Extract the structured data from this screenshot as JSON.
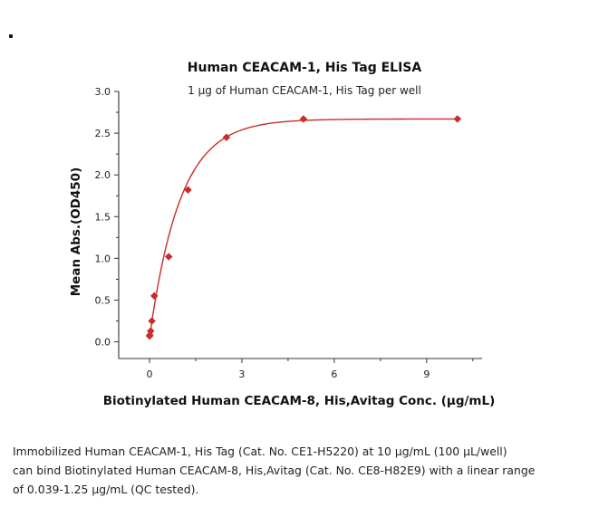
{
  "chart_data": {
    "type": "scatter",
    "title": "Human CEACAM-1, His Tag ELISA",
    "subtitle": "1 μg of Human CEACAM-1, His Tag per well",
    "xlabel": "Biotinylated Human CEACAM-8, His,Avitag Conc. (μg/mL)",
    "ylabel": "Mean Abs.(OD450)",
    "xlim": [
      -1,
      10.8
    ],
    "ylim": [
      -0.2,
      3.0
    ],
    "x_ticks": [
      "0",
      "3",
      "6",
      "9"
    ],
    "y_ticks": [
      "0.0",
      "0.5",
      "1.0",
      "1.5",
      "2.0",
      "2.5",
      "3.0"
    ],
    "grid": false,
    "color": "#cc2b2b",
    "series": [
      {
        "points": [
          {
            "x": 0.0024,
            "y": 0.07
          },
          {
            "x": 0.0098,
            "y": 0.08
          },
          {
            "x": 0.039,
            "y": 0.13
          },
          {
            "x": 0.078,
            "y": 0.25
          },
          {
            "x": 0.156,
            "y": 0.55
          },
          {
            "x": 0.625,
            "y": 1.02
          },
          {
            "x": 1.25,
            "y": 1.82
          },
          {
            "x": 2.5,
            "y": 2.45
          },
          {
            "x": 5,
            "y": 2.67
          },
          {
            "x": 10,
            "y": 2.67
          }
        ]
      }
    ],
    "fit_curve": true
  },
  "caption": {
    "line1": "Immobilized Human CEACAM-1, His Tag (Cat. No. CE1-H5220) at 10 μg/mL (100 μL/well)",
    "line2": "can bind Biotinylated Human CEACAM-8, His,Avitag (Cat. No. CE8-H82E9) with a linear range",
    "line3": "of 0.039-1.25 μg/mL (QC tested)."
  }
}
